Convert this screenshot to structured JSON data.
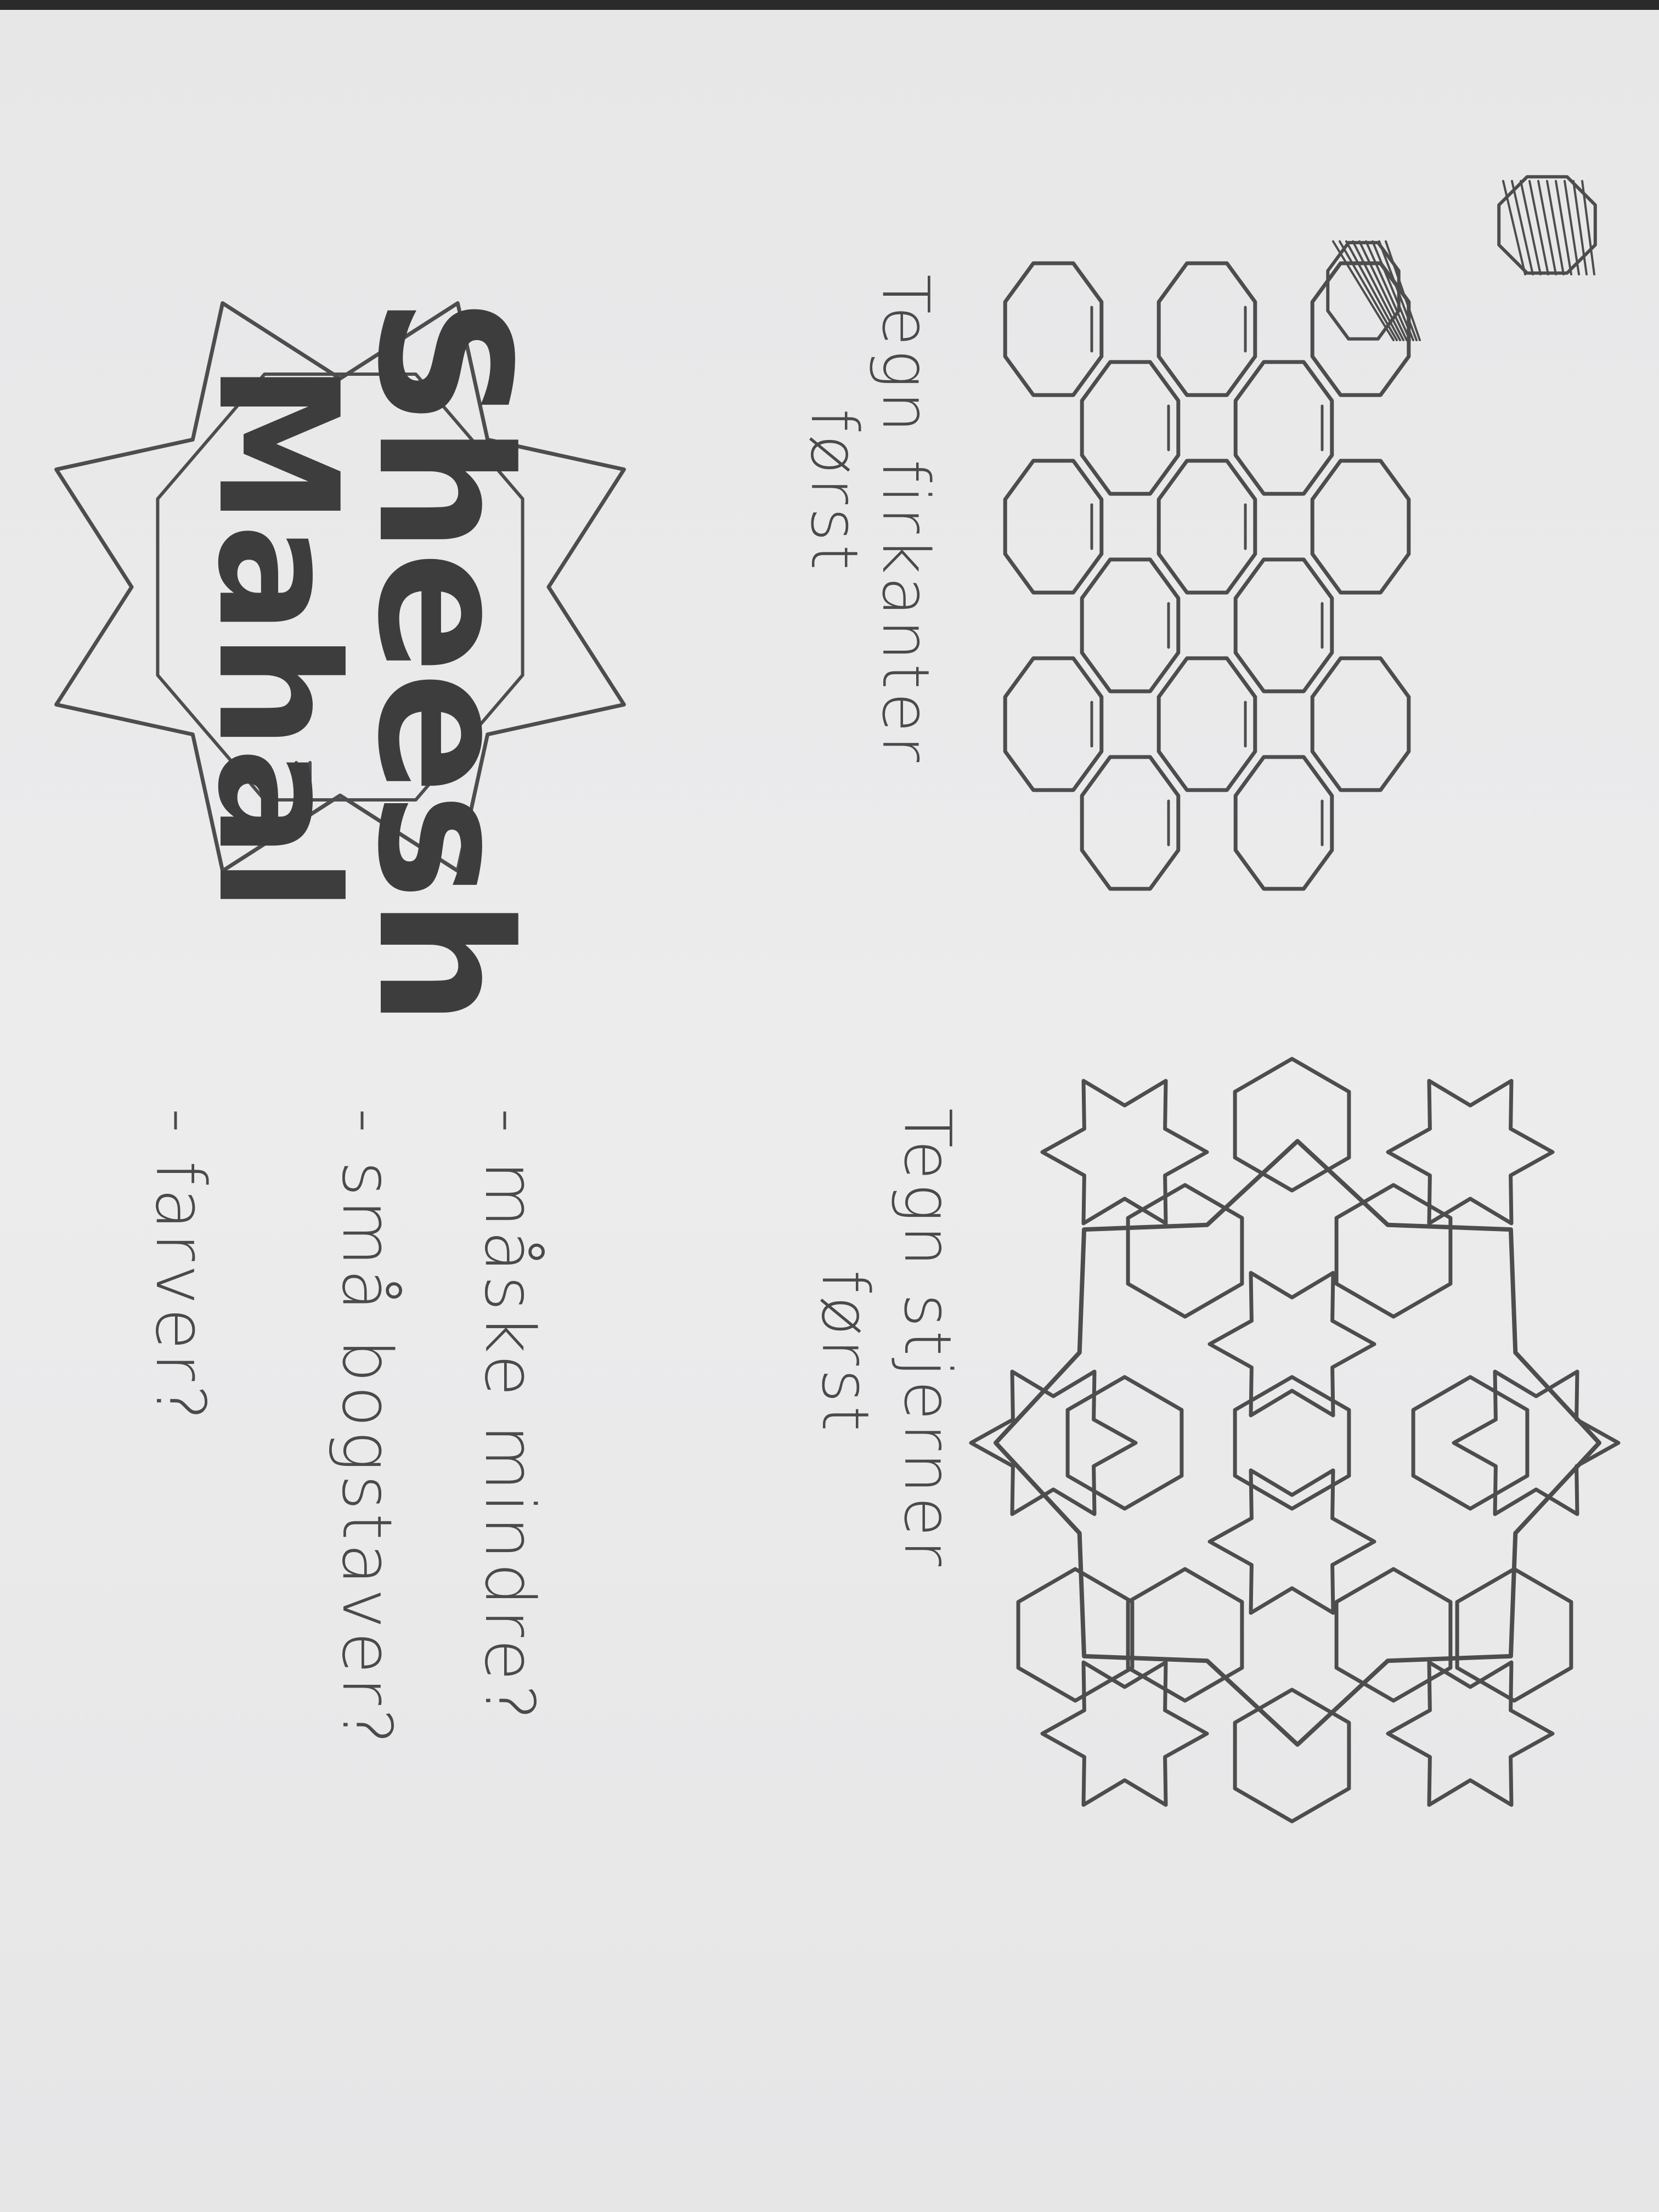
{
  "notes": {
    "tiles_caption_line1": "Tegn firkanter",
    "tiles_caption_line2": "først",
    "stars_caption_line1": "Tegn stjerner",
    "stars_caption_line2": "først",
    "bullet_1": "- måske mindre?",
    "bullet_2": "- små bogstaver?",
    "bullet_3": "- farver?"
  },
  "logo": {
    "line1": "Sheesh",
    "line2": "Mahal"
  },
  "colors": {
    "paper": "#e9e9ea",
    "pencil": "#4a4a4a"
  }
}
